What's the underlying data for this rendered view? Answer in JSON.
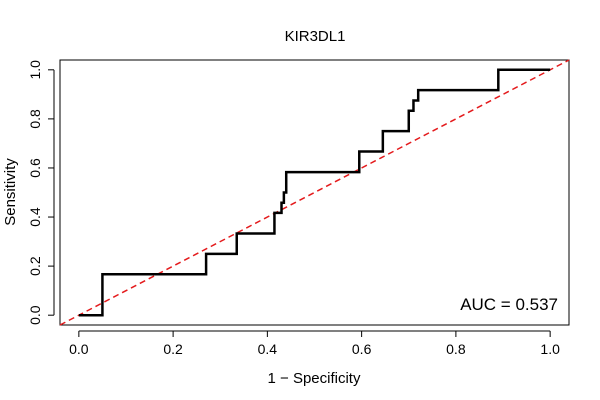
{
  "chart_data": {
    "type": "line",
    "title": "KIR3DL1",
    "xlabel": "1 − Specificity",
    "ylabel": "Sensitivity",
    "xlim": [
      -0.04,
      1.04
    ],
    "ylim": [
      -0.04,
      1.04
    ],
    "xticks": [
      0.0,
      0.2,
      0.4,
      0.6,
      0.8,
      1.0
    ],
    "yticks": [
      0.0,
      0.2,
      0.4,
      0.6,
      0.8,
      1.0
    ],
    "xtick_labels": [
      "0.0",
      "0.2",
      "0.4",
      "0.6",
      "0.8",
      "1.0"
    ],
    "ytick_labels": [
      "0.0",
      "0.2",
      "0.4",
      "0.6",
      "0.8",
      "1.0"
    ],
    "grid": false,
    "series": [
      {
        "role": "roc",
        "color": "#000000",
        "style": "solid",
        "x": [
          0.0,
          0.05,
          0.05,
          0.27,
          0.27,
          0.335,
          0.335,
          0.415,
          0.415,
          0.43,
          0.43,
          0.435,
          0.435,
          0.44,
          0.44,
          0.595,
          0.595,
          0.645,
          0.645,
          0.7,
          0.7,
          0.71,
          0.71,
          0.72,
          0.72,
          0.89,
          0.89,
          1.0
        ],
        "y": [
          0.0,
          0.0,
          0.167,
          0.167,
          0.25,
          0.25,
          0.333,
          0.333,
          0.417,
          0.417,
          0.458,
          0.458,
          0.5,
          0.5,
          0.583,
          0.583,
          0.667,
          0.667,
          0.75,
          0.75,
          0.833,
          0.833,
          0.875,
          0.875,
          0.917,
          0.917,
          1.0,
          1.0
        ]
      },
      {
        "role": "reference",
        "color": "#e41a1c",
        "style": "dashed",
        "x": [
          -0.04,
          1.04
        ],
        "y": [
          -0.04,
          1.04
        ]
      }
    ],
    "annotation": "AUC = 0.537"
  }
}
